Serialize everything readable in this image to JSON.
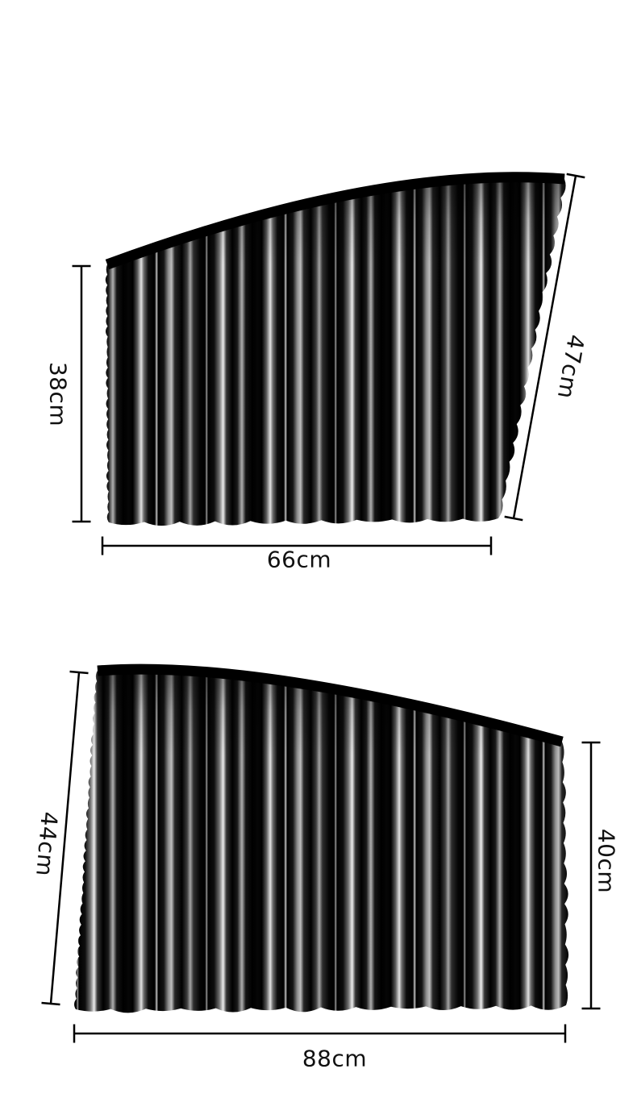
{
  "diagram": {
    "description": "car window pleated sunshade curtain size diagram, two shades with measurements",
    "top_shade": {
      "left_label": "38cm",
      "right_label": "47cm",
      "bottom_label": "66cm"
    },
    "bottom_shade": {
      "left_label": "44cm",
      "right_label": "40cm",
      "bottom_label": "88cm"
    },
    "colors": {
      "background": "#ffffff",
      "fabric": "#000000",
      "highlight": "#ededed",
      "dimension_line": "#000000",
      "label_text": "#111111"
    }
  }
}
